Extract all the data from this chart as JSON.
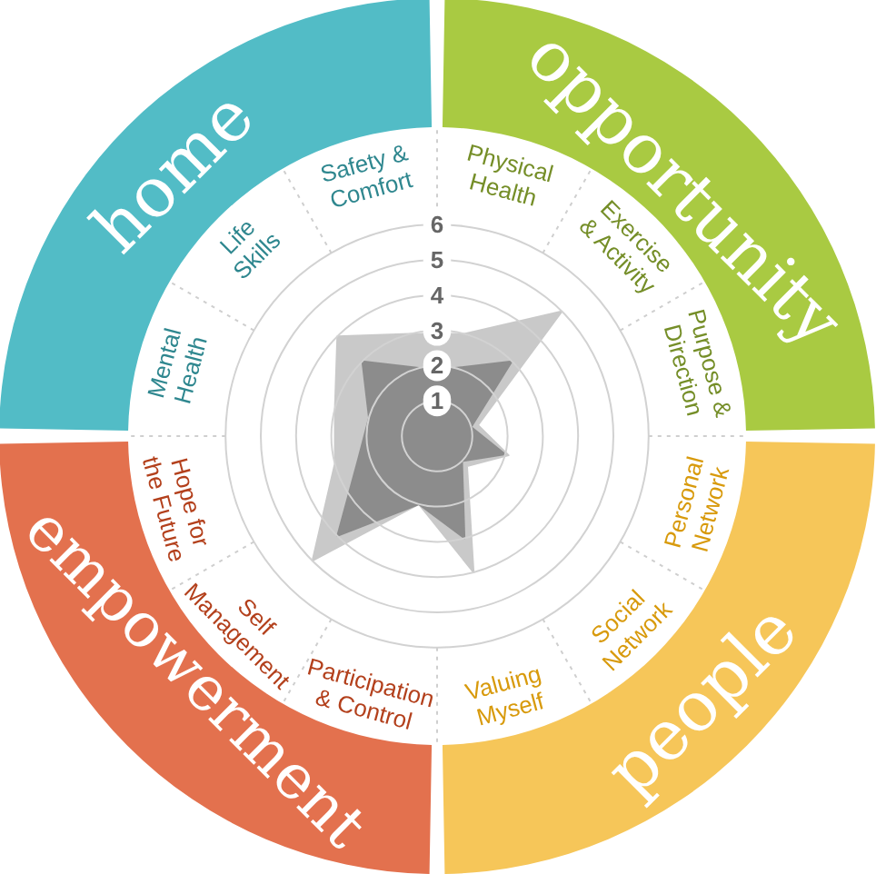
{
  "chart_data": [
    {
      "type": "radar",
      "categories": [
        "Physical\nHealth",
        "Exercise\n& Activity",
        "Purpose &\nDirection",
        "Personal\nNetwork",
        "Social\nNetwork",
        "Valuing\nMyself",
        "Participation\n& Control",
        "Self\nManagement",
        "Hope for\nthe Future",
        "Mental\nHealth",
        "Life\nSkills",
        "Safety &\nComfort"
      ],
      "series": [
        {
          "color": "#c9c9c9",
          "values": [
            3,
            5,
            1.2,
            2.1,
            1.2,
            4,
            2,
            5,
            3,
            3,
            4,
            3
          ]
        },
        {
          "color": "#8c8c8c",
          "values": [
            2,
            3,
            1,
            2,
            1,
            3,
            2,
            4,
            2.3,
            2,
            3,
            2
          ]
        }
      ],
      "ylim": [
        0,
        6
      ],
      "yticks": [
        1,
        2,
        3,
        4,
        5,
        6
      ],
      "grid": true,
      "marker": "none"
    },
    {
      "type": "donut",
      "categories": [
        "opportunity",
        "people",
        "empowerment",
        "home"
      ],
      "values": [
        25,
        25,
        25,
        25
      ],
      "colors": [
        "#a9ca42",
        "#f6c659",
        "#e3714e",
        "#52bcc6"
      ]
    }
  ]
}
